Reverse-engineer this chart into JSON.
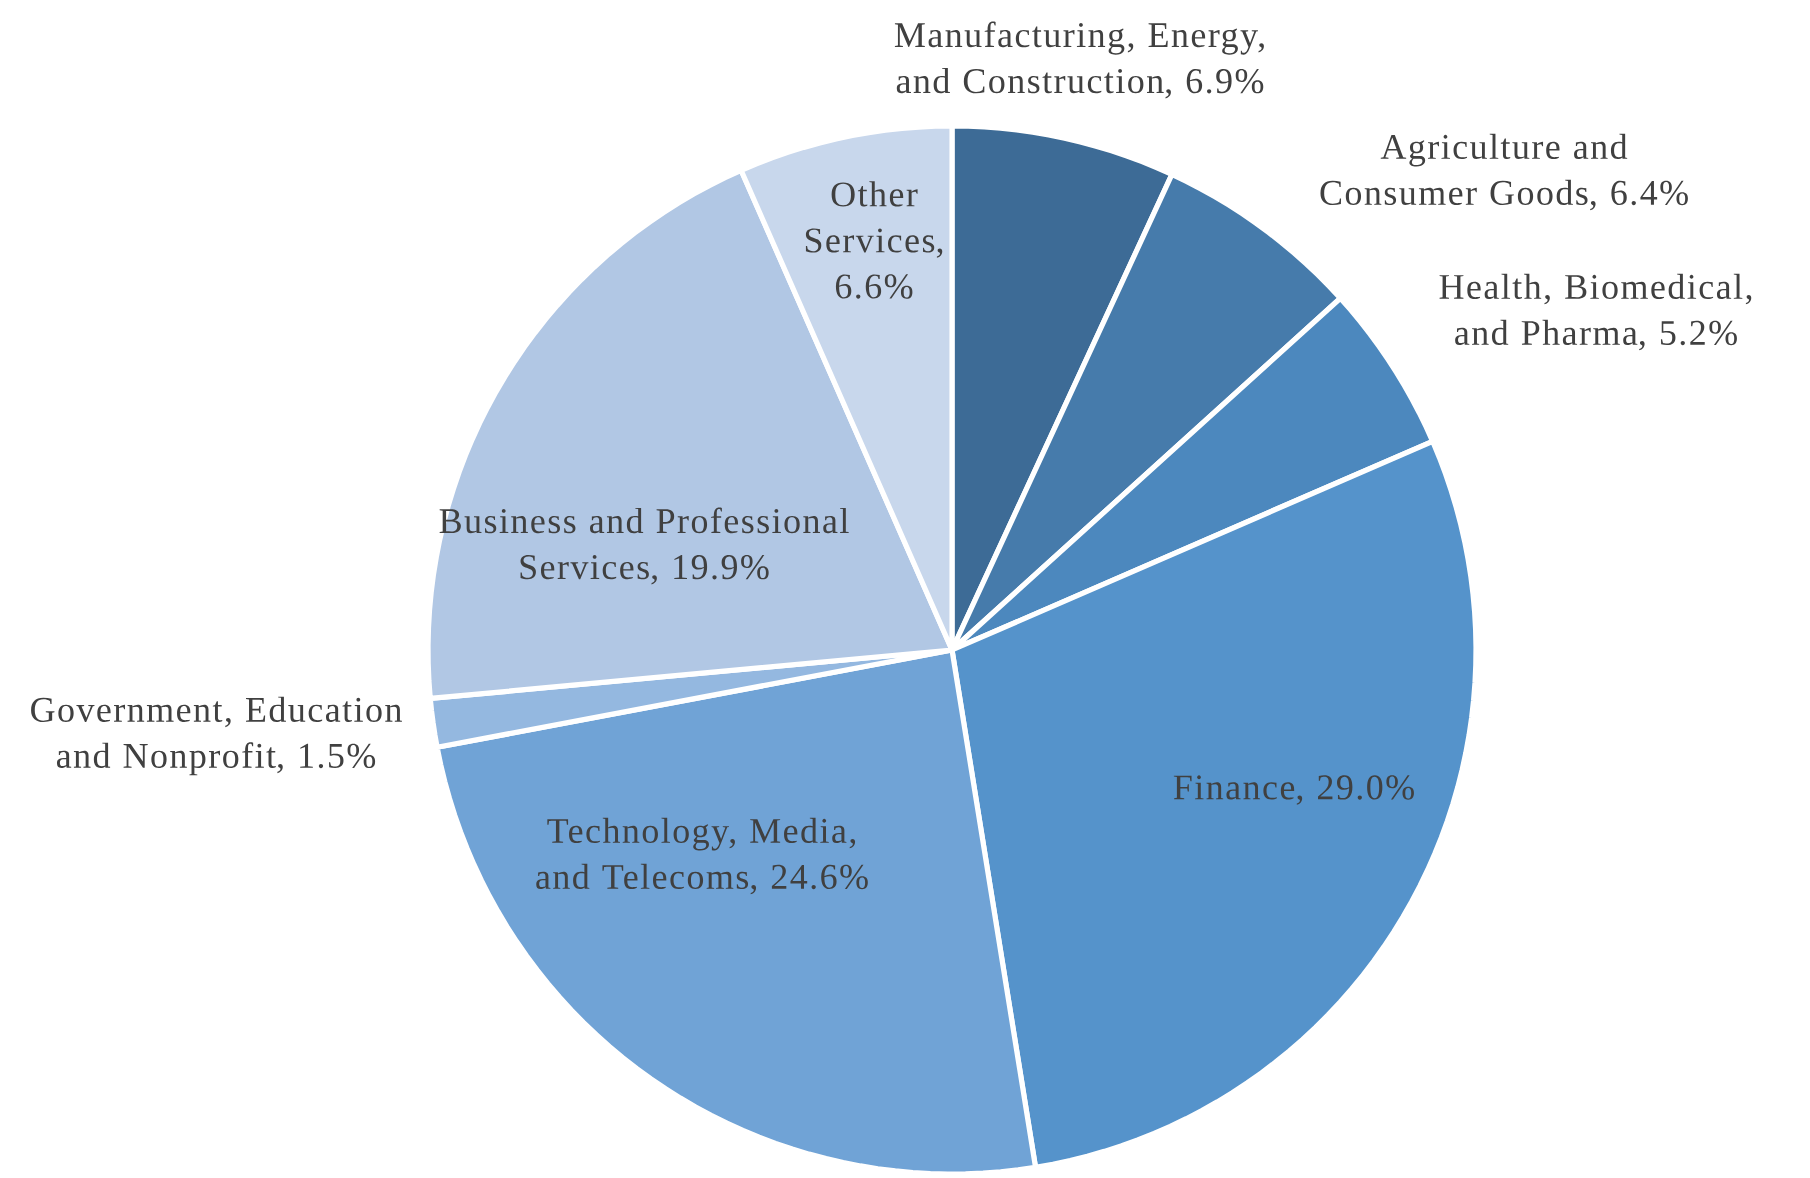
{
  "chart_data": {
    "type": "pie",
    "categories": [
      "Manufacturing, Energy, and Construction",
      "Agriculture and Consumer Goods",
      "Health, Biomedical, and Pharma",
      "Finance",
      "Technology, Media, and Telecoms",
      "Government, Education and Nonprofit",
      "Business and Professional Services",
      "Other Services"
    ],
    "values": [
      6.9,
      6.4,
      5.2,
      29.0,
      24.6,
      1.5,
      19.9,
      6.6
    ],
    "value_labels": [
      ", 6.9%",
      ", 6.4%",
      ", 5.2%",
      ", 29.0%",
      ", 24.6%",
      ", 1.5%",
      ", 19.9%",
      ", 6.6%"
    ],
    "legend": false,
    "colors": [
      "#3d6b96",
      "#467bab",
      "#4c88be",
      "#5593cb",
      "#70a3d6",
      "#94b8e0",
      "#b1c7e4",
      "#c8d7ec"
    ]
  }
}
